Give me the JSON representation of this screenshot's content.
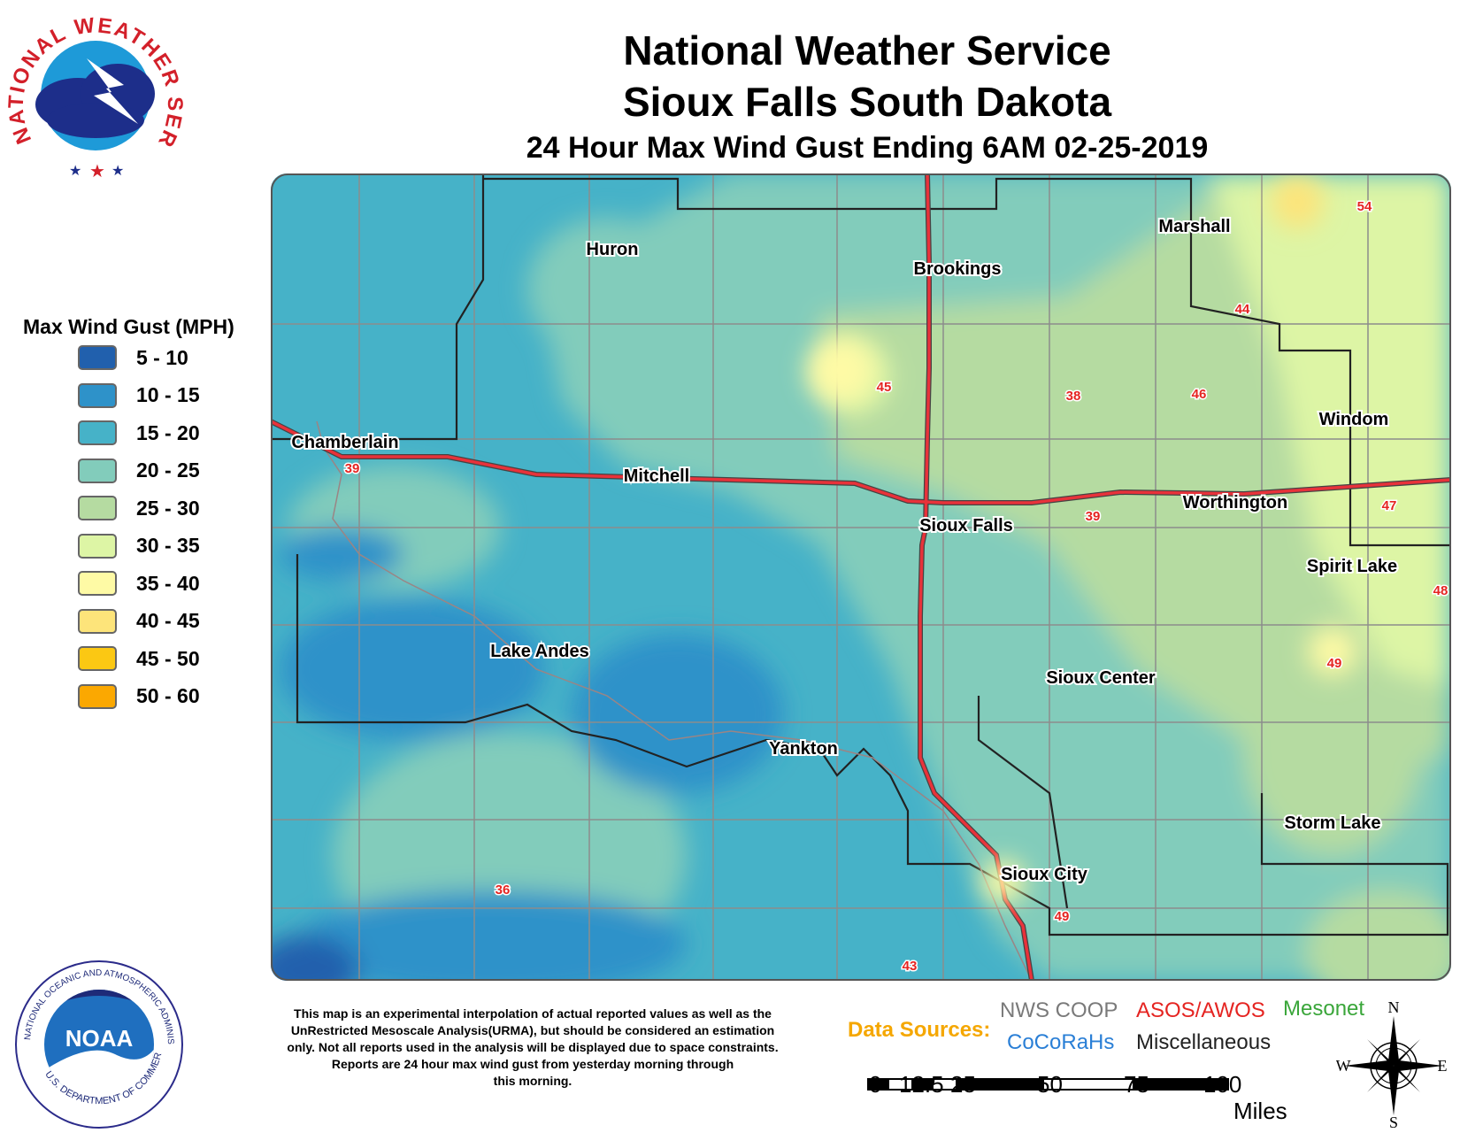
{
  "title": {
    "line1": "National Weather Service",
    "line2": "Sioux Falls South Dakota",
    "line3": "24 Hour Max Wind Gust Ending 6AM 02-25-2019"
  },
  "legend": {
    "title": "Max Wind Gust (MPH)",
    "items": [
      {
        "label": "5 - 10",
        "color": "#2160ad"
      },
      {
        "label": "10 - 15",
        "color": "#2e92c9"
      },
      {
        "label": "15 - 20",
        "color": "#46b2c8"
      },
      {
        "label": "20 - 25",
        "color": "#82ccbb"
      },
      {
        "label": "25 - 30",
        "color": "#b5dba1"
      },
      {
        "label": "30 - 35",
        "color": "#ddf5a5"
      },
      {
        "label": "35 - 40",
        "color": "#fefaa5"
      },
      {
        "label": "40 - 45",
        "color": "#fde47a"
      },
      {
        "label": "45 - 50",
        "color": "#fbc813"
      },
      {
        "label": "50 - 60",
        "color": "#fba801"
      }
    ]
  },
  "cities": [
    {
      "name": "Huron"
    },
    {
      "name": "Brookings"
    },
    {
      "name": "Marshall"
    },
    {
      "name": "Windom"
    },
    {
      "name": "Chamberlain"
    },
    {
      "name": "Mitchell"
    },
    {
      "name": "Sioux Falls"
    },
    {
      "name": "Worthington"
    },
    {
      "name": "Spirit Lake"
    },
    {
      "name": "Lake Andes"
    },
    {
      "name": "Sioux Center"
    },
    {
      "name": "Yankton"
    },
    {
      "name": "Storm Lake"
    },
    {
      "name": "Sioux City"
    }
  ],
  "observations": [
    "54",
    "44",
    "45",
    "38",
    "46",
    "39",
    "39",
    "47",
    "48",
    "49",
    "36",
    "49",
    "43"
  ],
  "disclaimer": {
    "line1": "This map is an experimental interpolation of actual reported values as well as the",
    "line2": "UnRestricted Mesoscale Analysis(URMA), but should be considered an estimation",
    "line3": "only. Not all reports used in the analysis will be displayed due to space constraints.",
    "line4": "Reports are 24 hour max wind gust from yesterday morning through",
    "line5": "this morning."
  },
  "data_sources": {
    "title": "Data Sources:",
    "items": [
      {
        "label": "NWS COOP",
        "color": "#7a7a7a"
      },
      {
        "label": "ASOS/AWOS",
        "color": "#e52421"
      },
      {
        "label": "Mesonet",
        "color": "#3aa63a"
      },
      {
        "label": "CoCoRaHs",
        "color": "#2a7fd6"
      },
      {
        "label": "Miscellaneous",
        "color": "#222222"
      }
    ]
  },
  "scale": {
    "ticks": [
      "0",
      "12.5",
      "25",
      "50",
      "75",
      "100"
    ],
    "unit": "Miles"
  },
  "compass": {
    "n": "N",
    "s": "S",
    "e": "E",
    "w": "W"
  },
  "logos": {
    "nws_text": "NATIONAL WEATHER SERVICE",
    "noaa_text": "NOAA",
    "noaa_ring_top": "NATIONAL OCEANIC AND ATMOSPHERIC ADMINISTRATION",
    "noaa_ring_bottom": "U.S. DEPARTMENT OF COMMERCE"
  }
}
